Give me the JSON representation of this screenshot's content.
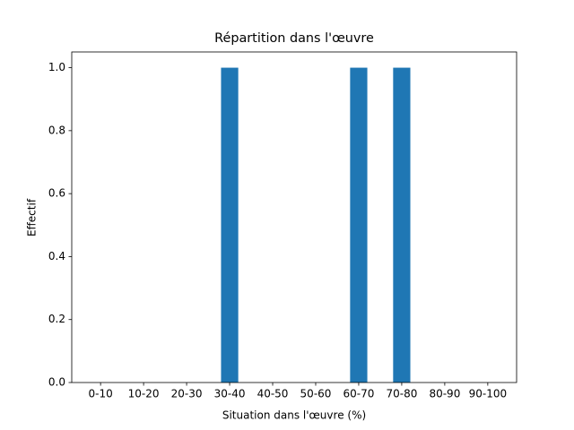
{
  "chart_data": {
    "type": "bar",
    "title": "Répartition dans l'œuvre",
    "x_label": "Situation dans l'œuvre (%)",
    "y_label": "Effectif",
    "categories": [
      "0-10",
      "10-20",
      "20-30",
      "30-40",
      "40-50",
      "50-60",
      "60-70",
      "70-80",
      "80-90",
      "90-100"
    ],
    "values": [
      0,
      0,
      0,
      1,
      0,
      0,
      1,
      1,
      0,
      0
    ],
    "color": "#1f77b4",
    "ylim": [
      0,
      1.05
    ],
    "yticks": [
      {
        "value": 0,
        "label": "0.0"
      },
      0.2,
      0.4,
      0.6,
      0.8,
      {
        "value": 1,
        "label": "1.0"
      }
    ],
    "grid": false
  }
}
